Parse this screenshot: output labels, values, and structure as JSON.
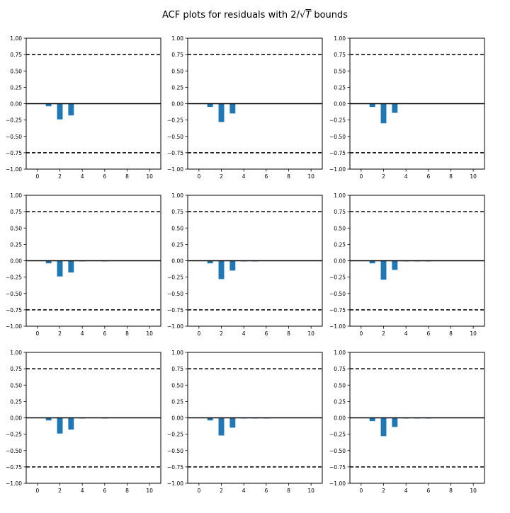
{
  "figure": {
    "title_prefix": "ACF plots for residuals with 2/",
    "title_sqrt": "T",
    "title_suffix": " bounds"
  },
  "style": {
    "bar_color": "#1f77b4",
    "line_color": "#000000",
    "axis_color": "#000000",
    "background": "#ffffff"
  },
  "chart_data": [
    {
      "type": "bar",
      "row": 1,
      "col": 1,
      "x": [
        1,
        2,
        3,
        4,
        5,
        6,
        7,
        8,
        9,
        10
      ],
      "values": [
        -0.04,
        -0.24,
        -0.18,
        0,
        0,
        0,
        0,
        0,
        0,
        0
      ],
      "bound": 0.75,
      "xlim": [
        -1,
        11
      ],
      "ylim": [
        -1.0,
        1.0
      ],
      "xticks": [
        0,
        2,
        4,
        6,
        8,
        10
      ],
      "yticks": [
        1.0,
        0.75,
        0.5,
        0.25,
        0.0,
        -0.25,
        -0.5,
        -0.75,
        -1.0
      ],
      "ytick_labels": [
        "1.00",
        "0.75",
        "0.50",
        "0.25",
        "0.00",
        "−0.25",
        "−0.50",
        "−0.75",
        "−1.00"
      ],
      "grid": false
    },
    {
      "type": "bar",
      "row": 1,
      "col": 2,
      "x": [
        1,
        2,
        3,
        4,
        5,
        6,
        7,
        8,
        9,
        10
      ],
      "values": [
        -0.05,
        -0.28,
        -0.15,
        0,
        0,
        0,
        0,
        0,
        0,
        0
      ],
      "bound": 0.75,
      "xlim": [
        -1,
        11
      ],
      "ylim": [
        -1.0,
        1.0
      ],
      "xticks": [
        0,
        2,
        4,
        6,
        8,
        10
      ],
      "yticks": [
        1.0,
        0.75,
        0.5,
        0.25,
        0.0,
        -0.25,
        -0.5,
        -0.75,
        -1.0
      ],
      "ytick_labels": [
        "1.00",
        "0.75",
        "0.50",
        "0.25",
        "0.00",
        "−0.25",
        "−0.50",
        "−0.75",
        "−1.00"
      ],
      "grid": false
    },
    {
      "type": "bar",
      "row": 1,
      "col": 3,
      "x": [
        1,
        2,
        3,
        4,
        5,
        6,
        7,
        8,
        9,
        10
      ],
      "values": [
        -0.05,
        -0.3,
        -0.14,
        0,
        0,
        0,
        0,
        0,
        0,
        0
      ],
      "bound": 0.75,
      "xlim": [
        -1,
        11
      ],
      "ylim": [
        -1.0,
        1.0
      ],
      "xticks": [
        0,
        2,
        4,
        6,
        8,
        10
      ],
      "yticks": [
        1.0,
        0.75,
        0.5,
        0.25,
        0.0,
        -0.25,
        -0.5,
        -0.75,
        -1.0
      ],
      "ytick_labels": [
        "1.00",
        "0.75",
        "0.50",
        "0.25",
        "0.00",
        "−0.25",
        "−0.50",
        "−0.75",
        "−1.00"
      ],
      "grid": false
    },
    {
      "type": "bar",
      "row": 2,
      "col": 1,
      "x": [
        1,
        2,
        3,
        4,
        5,
        6,
        7,
        8,
        9,
        10
      ],
      "values": [
        -0.04,
        -0.24,
        -0.18,
        -0.01,
        0,
        -0.01,
        0,
        0,
        0,
        0
      ],
      "bound": 0.75,
      "xlim": [
        -1,
        11
      ],
      "ylim": [
        -1.0,
        1.0
      ],
      "xticks": [
        0,
        2,
        4,
        6,
        8,
        10
      ],
      "yticks": [
        1.0,
        0.75,
        0.5,
        0.25,
        0.0,
        -0.25,
        -0.5,
        -0.75,
        -1.0
      ],
      "ytick_labels": [
        "1.00",
        "0.75",
        "0.50",
        "0.25",
        "0.00",
        "−0.25",
        "−0.50",
        "−0.75",
        "−1.00"
      ],
      "grid": false
    },
    {
      "type": "bar",
      "row": 2,
      "col": 2,
      "x": [
        1,
        2,
        3,
        4,
        5,
        6,
        7,
        8,
        9,
        10
      ],
      "values": [
        -0.04,
        -0.28,
        -0.15,
        -0.01,
        -0.01,
        0,
        0,
        0,
        0,
        0
      ],
      "bound": 0.75,
      "xlim": [
        -1,
        11
      ],
      "ylim": [
        -1.0,
        1.0
      ],
      "xticks": [
        0,
        2,
        4,
        6,
        8,
        10
      ],
      "yticks": [
        1.0,
        0.75,
        0.5,
        0.25,
        0.0,
        -0.25,
        -0.5,
        -0.75,
        -1.0
      ],
      "ytick_labels": [
        "1.00",
        "0.75",
        "0.50",
        "0.25",
        "0.00",
        "−0.25",
        "−0.50",
        "−0.75",
        "−1.00"
      ],
      "grid": false
    },
    {
      "type": "bar",
      "row": 2,
      "col": 3,
      "x": [
        1,
        2,
        3,
        4,
        5,
        6,
        7,
        8,
        9,
        10
      ],
      "values": [
        -0.04,
        -0.29,
        -0.14,
        -0.01,
        -0.01,
        -0.01,
        0,
        0,
        0,
        0
      ],
      "bound": 0.75,
      "xlim": [
        -1,
        11
      ],
      "ylim": [
        -1.0,
        1.0
      ],
      "xticks": [
        0,
        2,
        4,
        6,
        8,
        10
      ],
      "yticks": [
        1.0,
        0.75,
        0.5,
        0.25,
        0.0,
        -0.25,
        -0.5,
        -0.75,
        -1.0
      ],
      "ytick_labels": [
        "1.00",
        "0.75",
        "0.50",
        "0.25",
        "0.00",
        "−0.25",
        "−0.50",
        "−0.75",
        "−1.00"
      ],
      "grid": false
    },
    {
      "type": "bar",
      "row": 3,
      "col": 1,
      "x": [
        1,
        2,
        3,
        4,
        5,
        6,
        7,
        8,
        9,
        10
      ],
      "values": [
        -0.04,
        -0.24,
        -0.18,
        -0.01,
        0,
        -0.01,
        0,
        0,
        0,
        0
      ],
      "bound": 0.75,
      "xlim": [
        -1,
        11
      ],
      "ylim": [
        -1.0,
        1.0
      ],
      "xticks": [
        0,
        2,
        4,
        6,
        8,
        10
      ],
      "yticks": [
        1.0,
        0.75,
        0.5,
        0.25,
        0.0,
        -0.25,
        -0.5,
        -0.75,
        -1.0
      ],
      "ytick_labels": [
        "1.00",
        "0.75",
        "0.50",
        "0.25",
        "0.00",
        "−0.25",
        "−0.50",
        "−0.75",
        "−1.00"
      ],
      "grid": false
    },
    {
      "type": "bar",
      "row": 3,
      "col": 2,
      "x": [
        1,
        2,
        3,
        4,
        5,
        6,
        7,
        8,
        9,
        10
      ],
      "values": [
        -0.04,
        -0.27,
        -0.15,
        -0.01,
        -0.01,
        -0.01,
        0,
        0,
        0,
        0
      ],
      "bound": 0.75,
      "xlim": [
        -1,
        11
      ],
      "ylim": [
        -1.0,
        1.0
      ],
      "xticks": [
        0,
        2,
        4,
        6,
        8,
        10
      ],
      "yticks": [
        1.0,
        0.75,
        0.5,
        0.25,
        0.0,
        -0.25,
        -0.5,
        -0.75,
        -1.0
      ],
      "ytick_labels": [
        "1.00",
        "0.75",
        "0.50",
        "0.25",
        "0.00",
        "−0.25",
        "−0.50",
        "−0.75",
        "−1.00"
      ],
      "grid": false
    },
    {
      "type": "bar",
      "row": 3,
      "col": 3,
      "x": [
        1,
        2,
        3,
        4,
        5,
        6,
        7,
        8,
        9,
        10
      ],
      "values": [
        -0.05,
        -0.28,
        -0.14,
        -0.01,
        -0.01,
        -0.01,
        0,
        0,
        0,
        0
      ],
      "bound": 0.75,
      "xlim": [
        -1,
        11
      ],
      "ylim": [
        -1.0,
        1.0
      ],
      "xticks": [
        0,
        2,
        4,
        6,
        8,
        10
      ],
      "yticks": [
        1.0,
        0.75,
        0.5,
        0.25,
        0.0,
        -0.25,
        -0.5,
        -0.75,
        -1.0
      ],
      "ytick_labels": [
        "1.00",
        "0.75",
        "0.50",
        "0.25",
        "0.00",
        "−0.25",
        "−0.50",
        "−0.75",
        "−1.00"
      ],
      "grid": false
    }
  ]
}
